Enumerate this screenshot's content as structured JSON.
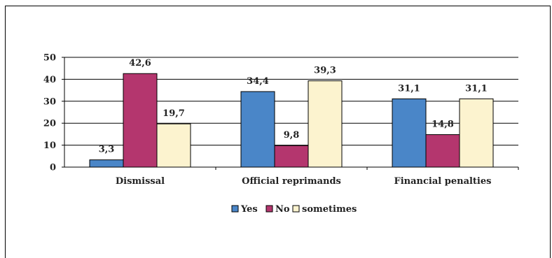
{
  "chart_data": {
    "type": "bar",
    "title": "",
    "xlabel": "",
    "ylabel": "",
    "ylim": [
      0,
      50
    ],
    "yticks": [
      0,
      10,
      20,
      30,
      40,
      50
    ],
    "grid": true,
    "legend_position": "bottom",
    "categories": [
      "Dismissal",
      "Official reprimands",
      "Financial penalties"
    ],
    "series": [
      {
        "name": "Yes",
        "color": "#4A86C8",
        "values": [
          3.3,
          34.4,
          31.1
        ],
        "labels": [
          "3,3",
          "34,4",
          "31,1"
        ]
      },
      {
        "name": "No",
        "color": "#B4366E",
        "values": [
          42.6,
          9.8,
          14.8
        ],
        "labels": [
          "42,6",
          "9,8",
          "14,8"
        ]
      },
      {
        "name": "sometimes",
        "color": "#FCF3CF",
        "values": [
          19.7,
          39.3,
          31.1
        ],
        "labels": [
          "19,7",
          "39,3",
          "31,1"
        ]
      }
    ]
  }
}
